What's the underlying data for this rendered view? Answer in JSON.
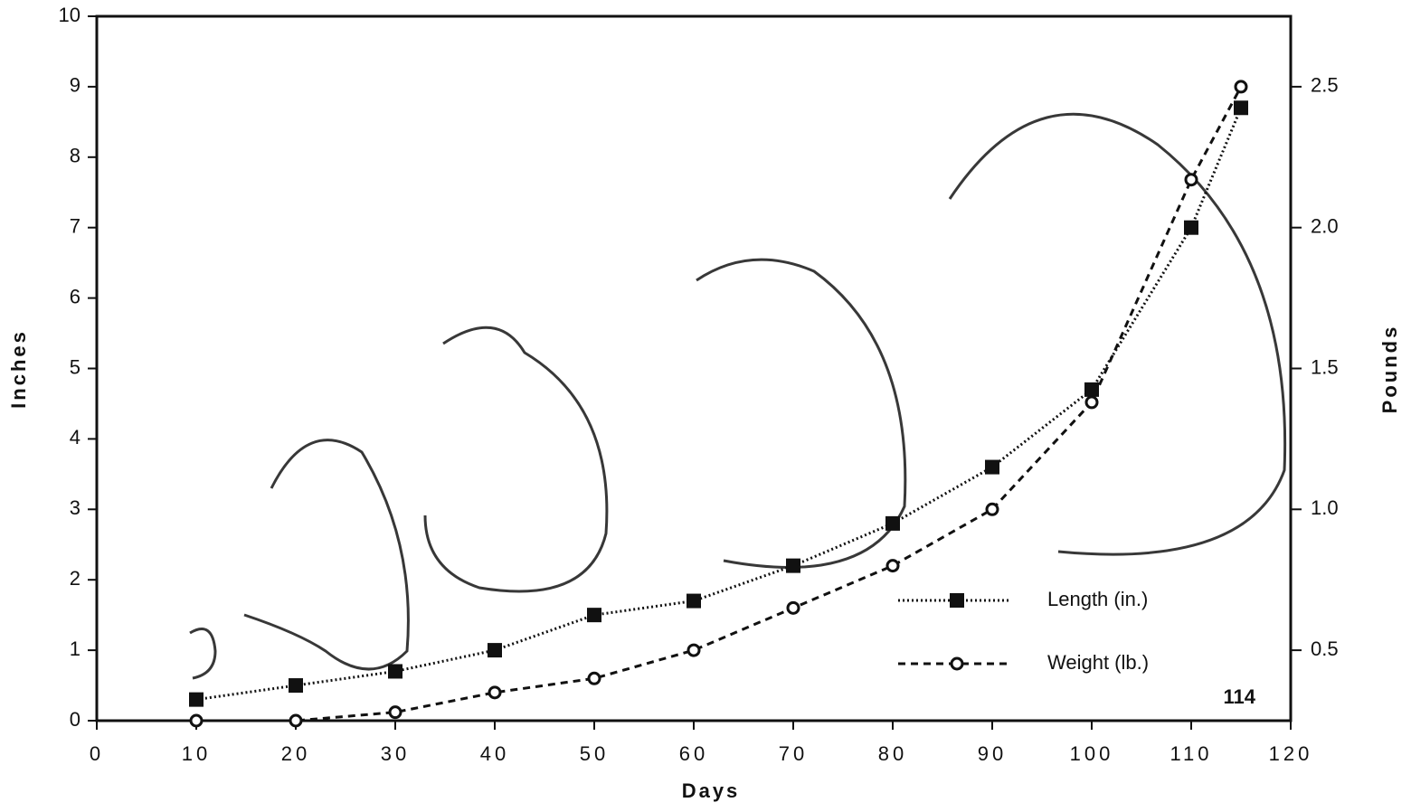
{
  "chart_data": {
    "type": "line",
    "x_label": "Days",
    "y_label": "Inches",
    "y2_label": "Pounds",
    "annotation": "114",
    "xlim": [
      0,
      120
    ],
    "xticks": [
      0,
      10,
      20,
      30,
      40,
      50,
      60,
      70,
      80,
      90,
      100,
      110,
      120
    ],
    "ylim": [
      0,
      10
    ],
    "yticks": [
      0,
      1,
      2,
      3,
      4,
      5,
      6,
      7,
      8,
      9,
      10
    ],
    "y2lim": [
      0.25,
      2.75
    ],
    "y2ticks": [
      0.5,
      {
        "value": 1,
        "label": "1.0"
      },
      1.5,
      {
        "value": 2,
        "label": "2.0"
      },
      2.5
    ],
    "legend": "lower right",
    "series": [
      {
        "name": "Length (in.)",
        "color": "#111111",
        "marker": "square",
        "dash": "dotted",
        "x": [
          10,
          20,
          30,
          40,
          50,
          60,
          70,
          80,
          90,
          100,
          110,
          115
        ],
        "values": [
          0.3,
          0.5,
          0.7,
          1.0,
          1.5,
          1.7,
          2.2,
          2.8,
          3.6,
          4.7,
          7.0,
          8.7
        ]
      },
      {
        "name": "Weight (lb.)",
        "color": "#111111",
        "marker": "circle",
        "dash": "dashed",
        "axis": "y2",
        "x": [
          10,
          20,
          30,
          40,
          50,
          60,
          70,
          80,
          90,
          100,
          110,
          115
        ],
        "values": [
          0.25,
          0.25,
          0.28,
          0.35,
          0.4,
          0.5,
          0.65,
          0.8,
          1.0,
          1.38,
          2.17,
          2.5
        ]
      }
    ]
  }
}
